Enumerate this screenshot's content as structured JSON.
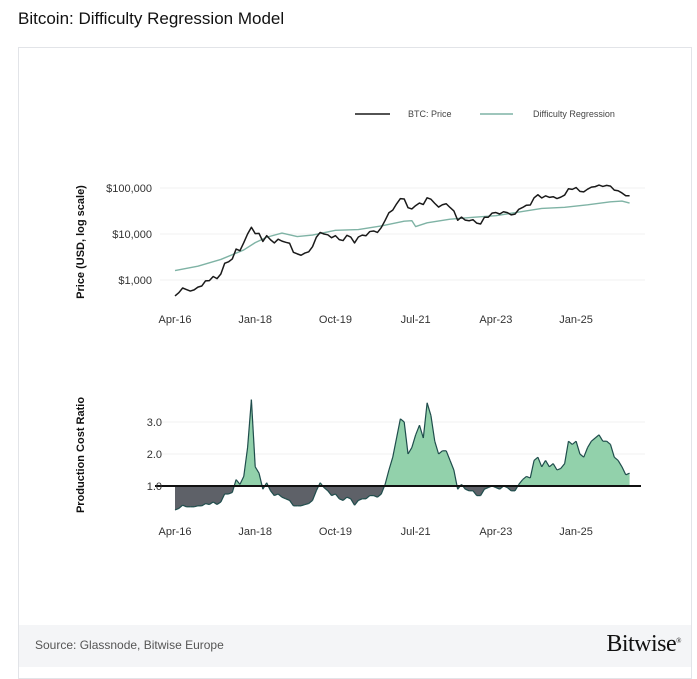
{
  "title": "Bitcoin: Difficulty Regression Model",
  "footer": {
    "source": "Source: Glassnode, Bitwise Europe",
    "logo": "Bitwise"
  },
  "colors": {
    "price": "#1a1a1a",
    "regression": "#7fb3a5",
    "above": "#92d1ab",
    "below": "#5e6168",
    "ratio_line": "#1f4d4c"
  },
  "chart_data": [
    {
      "type": "line",
      "ylabel": "Price (USD, log scale)",
      "yscale": "log",
      "ylim": [
        300,
        200000
      ],
      "yticks": [
        {
          "value": 100000,
          "label": "$100,000"
        },
        {
          "value": 10000,
          "label": "$10,000"
        },
        {
          "value": 1000,
          "label": "$1,000"
        }
      ],
      "xticks": [
        {
          "date": "2016-04",
          "label": "Apr-16"
        },
        {
          "date": "2018-01",
          "label": "Jan-18"
        },
        {
          "date": "2019-10",
          "label": "Oct-19"
        },
        {
          "date": "2021-07",
          "label": "Jul-21"
        },
        {
          "date": "2023-04",
          "label": "Apr-23"
        },
        {
          "date": "2025-01",
          "label": "Jan-25"
        }
      ],
      "grid": true,
      "legend_position": "top-right",
      "series": [
        {
          "name": "BTC: Price",
          "x": [
            "2016-04",
            "2016-05",
            "2016-06",
            "2016-07",
            "2016-08",
            "2016-09",
            "2016-10",
            "2016-11",
            "2016-12",
            "2017-01",
            "2017-02",
            "2017-03",
            "2017-04",
            "2017-05",
            "2017-06",
            "2017-07",
            "2017-08",
            "2017-09",
            "2017-10",
            "2017-11",
            "2017-12",
            "2018-01",
            "2018-02",
            "2018-03",
            "2018-04",
            "2018-05",
            "2018-06",
            "2018-07",
            "2018-08",
            "2018-09",
            "2018-10",
            "2018-11",
            "2018-12",
            "2019-01",
            "2019-02",
            "2019-03",
            "2019-04",
            "2019-05",
            "2019-06",
            "2019-07",
            "2019-08",
            "2019-09",
            "2019-10",
            "2019-11",
            "2019-12",
            "2020-01",
            "2020-02",
            "2020-03",
            "2020-04",
            "2020-05",
            "2020-06",
            "2020-07",
            "2020-08",
            "2020-09",
            "2020-10",
            "2020-11",
            "2020-12",
            "2021-01",
            "2021-02",
            "2021-03",
            "2021-04",
            "2021-05",
            "2021-06",
            "2021-07",
            "2021-08",
            "2021-09",
            "2021-10",
            "2021-11",
            "2021-12",
            "2022-01",
            "2022-02",
            "2022-03",
            "2022-04",
            "2022-05",
            "2022-06",
            "2022-07",
            "2022-08",
            "2022-09",
            "2022-10",
            "2022-11",
            "2022-12",
            "2023-01",
            "2023-02",
            "2023-03",
            "2023-04",
            "2023-05",
            "2023-06",
            "2023-07",
            "2023-08",
            "2023-09",
            "2023-10",
            "2023-11",
            "2023-12",
            "2024-01",
            "2024-02",
            "2024-03",
            "2024-04",
            "2024-05",
            "2024-06",
            "2024-07",
            "2024-08",
            "2024-09",
            "2024-10",
            "2024-11",
            "2024-12",
            "2025-01",
            "2025-02",
            "2025-03",
            "2025-04",
            "2025-05",
            "2025-06",
            "2025-07",
            "2025-08",
            "2025-09",
            "2025-10",
            "2025-11",
            "2025-12",
            "2026-01",
            "2026-02",
            "2026-03"
          ],
          "y": [
            450,
            530,
            670,
            620,
            575,
            610,
            700,
            740,
            960,
            970,
            1190,
            1070,
            1350,
            2300,
            2480,
            2870,
            4700,
            4340,
            6470,
            10000,
            14000,
            10200,
            10300,
            6900,
            9200,
            7500,
            6400,
            7700,
            7000,
            6600,
            6300,
            4000,
            3700,
            3450,
            3850,
            4100,
            5300,
            8500,
            10800,
            10000,
            9600,
            8300,
            9200,
            7550,
            7200,
            9350,
            8600,
            6400,
            8600,
            9450,
            9150,
            11300,
            11650,
            10800,
            13800,
            19700,
            29000,
            33100,
            45100,
            58800,
            57700,
            37300,
            35000,
            41500,
            47100,
            43800,
            61300,
            57000,
            46300,
            38500,
            43200,
            45500,
            37700,
            31800,
            19900,
            23300,
            20000,
            19400,
            20500,
            17200,
            16500,
            23100,
            23100,
            28500,
            29300,
            27200,
            30500,
            29200,
            26000,
            27000,
            34500,
            37700,
            42300,
            42600,
            61200,
            71300,
            60700,
            67500,
            62700,
            64600,
            59000,
            63300,
            70200,
            96400,
            93400,
            102400,
            84400,
            82500,
            94200,
            104600,
            107100,
            115700,
            108000,
            114000,
            110000,
            90000,
            87000,
            78000,
            68000,
            68000
          ]
        },
        {
          "name": "Difficulty Regression",
          "x": [
            "2016-04",
            "2016-10",
            "2017-04",
            "2017-10",
            "2018-01",
            "2018-04",
            "2018-08",
            "2018-12",
            "2019-04",
            "2019-10",
            "2020-04",
            "2020-10",
            "2021-04",
            "2021-06",
            "2021-07",
            "2021-10",
            "2022-04",
            "2022-10",
            "2023-04",
            "2023-10",
            "2024-04",
            "2024-10",
            "2025-04",
            "2025-10",
            "2026-01",
            "2026-03"
          ],
          "y": [
            1600,
            2000,
            2800,
            4500,
            6500,
            8500,
            10500,
            8800,
            9500,
            12000,
            12500,
            15000,
            19000,
            19500,
            14500,
            17500,
            21000,
            23000,
            25000,
            30000,
            36000,
            38000,
            43000,
            50000,
            52000,
            47000
          ]
        }
      ]
    },
    {
      "type": "area",
      "ylabel": "Production Cost Ratio",
      "ylim": [
        0,
        4
      ],
      "baseline": 1.0,
      "yticks": [
        {
          "value": 3,
          "label": "3.0"
        },
        {
          "value": 2,
          "label": "2.0"
        },
        {
          "value": 1,
          "label": "1.0"
        }
      ],
      "xticks": [
        {
          "date": "2016-04",
          "label": "Apr-16"
        },
        {
          "date": "2018-01",
          "label": "Jan-18"
        },
        {
          "date": "2019-10",
          "label": "Oct-19"
        },
        {
          "date": "2021-07",
          "label": "Jul-21"
        },
        {
          "date": "2023-04",
          "label": "Apr-23"
        },
        {
          "date": "2025-01",
          "label": "Jan-25"
        }
      ],
      "grid": true,
      "series": [
        {
          "y": [
            0.25,
            0.3,
            0.4,
            0.35,
            0.35,
            0.35,
            0.38,
            0.38,
            0.45,
            0.42,
            0.5,
            0.42,
            0.5,
            0.75,
            0.75,
            0.8,
            1.2,
            1.05,
            1.3,
            2.2,
            3.7,
            1.6,
            1.4,
            0.9,
            1.1,
            0.85,
            0.7,
            0.75,
            0.65,
            0.6,
            0.55,
            0.38,
            0.38,
            0.38,
            0.42,
            0.45,
            0.55,
            0.85,
            1.1,
            0.95,
            0.85,
            0.7,
            0.75,
            0.6,
            0.55,
            0.65,
            0.6,
            0.4,
            0.55,
            0.6,
            0.6,
            0.7,
            0.7,
            0.65,
            0.75,
            1.05,
            1.5,
            1.9,
            2.5,
            3.1,
            3.0,
            2.0,
            2.2,
            2.6,
            2.9,
            2.5,
            3.6,
            3.2,
            2.4,
            2.0,
            2.1,
            2.1,
            1.8,
            1.5,
            0.9,
            1.05,
            0.9,
            0.85,
            0.85,
            0.7,
            0.7,
            0.9,
            0.95,
            1.0,
            0.95,
            0.9,
            1.0,
            0.95,
            0.85,
            0.85,
            1.05,
            1.2,
            1.3,
            1.25,
            1.8,
            1.9,
            1.6,
            1.8,
            1.6,
            1.7,
            1.5,
            1.55,
            1.7,
            2.4,
            2.3,
            2.4,
            2.0,
            1.9,
            2.2,
            2.4,
            2.5,
            2.6,
            2.4,
            2.4,
            2.3,
            1.9,
            1.8,
            1.6,
            1.35,
            1.4
          ]
        }
      ]
    }
  ]
}
